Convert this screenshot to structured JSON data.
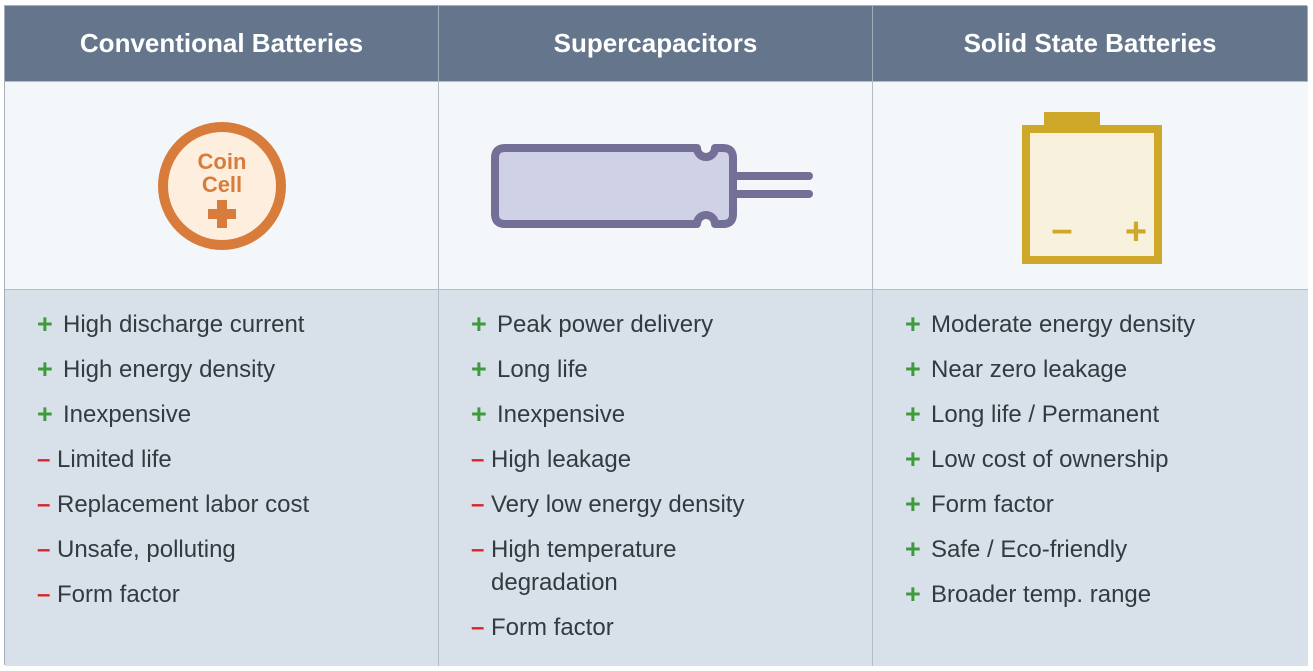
{
  "columns": [
    {
      "title": "Conventional Batteries",
      "icon": "coin-cell-icon",
      "icon_text": [
        "Coin",
        "Cell"
      ],
      "items": [
        {
          "sign": "+",
          "text": "High discharge current"
        },
        {
          "sign": "+",
          "text": "High energy density"
        },
        {
          "sign": "+",
          "text": "Inexpensive"
        },
        {
          "sign": "–",
          "text": "Limited life"
        },
        {
          "sign": "–",
          "text": "Replacement labor cost"
        },
        {
          "sign": "–",
          "text": "Unsafe, polluting"
        },
        {
          "sign": "–",
          "text": "Form factor"
        }
      ]
    },
    {
      "title": "Supercapacitors",
      "icon": "supercapacitor-icon",
      "items": [
        {
          "sign": "+",
          "text": "Peak power delivery"
        },
        {
          "sign": "+",
          "text": "Long life"
        },
        {
          "sign": "+",
          "text": "Inexpensive"
        },
        {
          "sign": "–",
          "text": "High leakage"
        },
        {
          "sign": "–",
          "text": "Very low energy density"
        },
        {
          "sign": "–",
          "text": "High temperature\ndegradation"
        },
        {
          "sign": "–",
          "text": "Form factor"
        }
      ]
    },
    {
      "title": "Solid State Batteries",
      "icon": "solid-state-battery-icon",
      "icon_text": [
        "–",
        "+"
      ],
      "items": [
        {
          "sign": "+",
          "text": "Moderate energy density"
        },
        {
          "sign": "+",
          "text": "Near zero leakage"
        },
        {
          "sign": "+",
          "text": "Long life / Permanent"
        },
        {
          "sign": "+",
          "text": "Low cost of ownership"
        },
        {
          "sign": "+",
          "text": "Form factor"
        },
        {
          "sign": "+",
          "text": "Safe / Eco-friendly"
        },
        {
          "sign": "+",
          "text": "Broader temp. range"
        }
      ]
    }
  ],
  "colors": {
    "header_bg": "#65768c",
    "list_bg": "#d8e1e9",
    "icon_bg": "#f4f7fa",
    "plus": "#3e9a3c",
    "minus": "#d6262b",
    "coin": "#d87c3c",
    "capacitor": "#736f97",
    "battery": "#cfa82a"
  }
}
